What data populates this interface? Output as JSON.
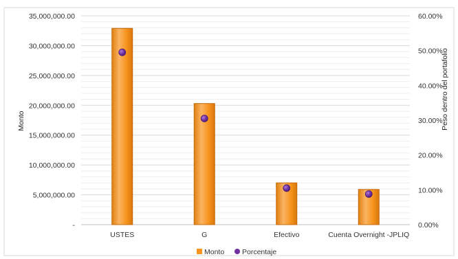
{
  "chart_data": {
    "type": "bar",
    "title": "",
    "categories": [
      "USTES",
      "G",
      "Efectivo",
      "Cuenta Overnight -JPLIQ"
    ],
    "series": [
      {
        "name": "Monto",
        "axis": "left",
        "kind": "bar",
        "values": [
          32900000,
          20300000,
          7000000,
          5900000
        ]
      },
      {
        "name": "Porcentaje",
        "axis": "right",
        "kind": "scatter",
        "values": [
          49.5,
          30.5,
          10.5,
          8.8
        ]
      }
    ],
    "ylabel": "Monto",
    "y2label": "Peso dentro del portafolio",
    "ylim": [
      0,
      35000000
    ],
    "y2lim": [
      0,
      60
    ],
    "yticks": [
      "-",
      "5,000,000.00",
      "10,000,000.00",
      "15,000,000.00",
      "20,000,000.00",
      "25,000,000.00",
      "30,000,000.00",
      "35,000,000.00"
    ],
    "y2ticks": [
      "0.00%",
      "10.00%",
      "20.00%",
      "30.00%",
      "40.00%",
      "50.00%",
      "60.00%"
    ],
    "grid": true,
    "legend_position": "bottom",
    "colors": {
      "bar": "#F7941D",
      "bar_edge": "#C4690C",
      "bar_highlight": "#FBB363",
      "marker": "#7030A0",
      "marker_edge": "#4B1D72",
      "grid": "#D9D9D9"
    }
  }
}
